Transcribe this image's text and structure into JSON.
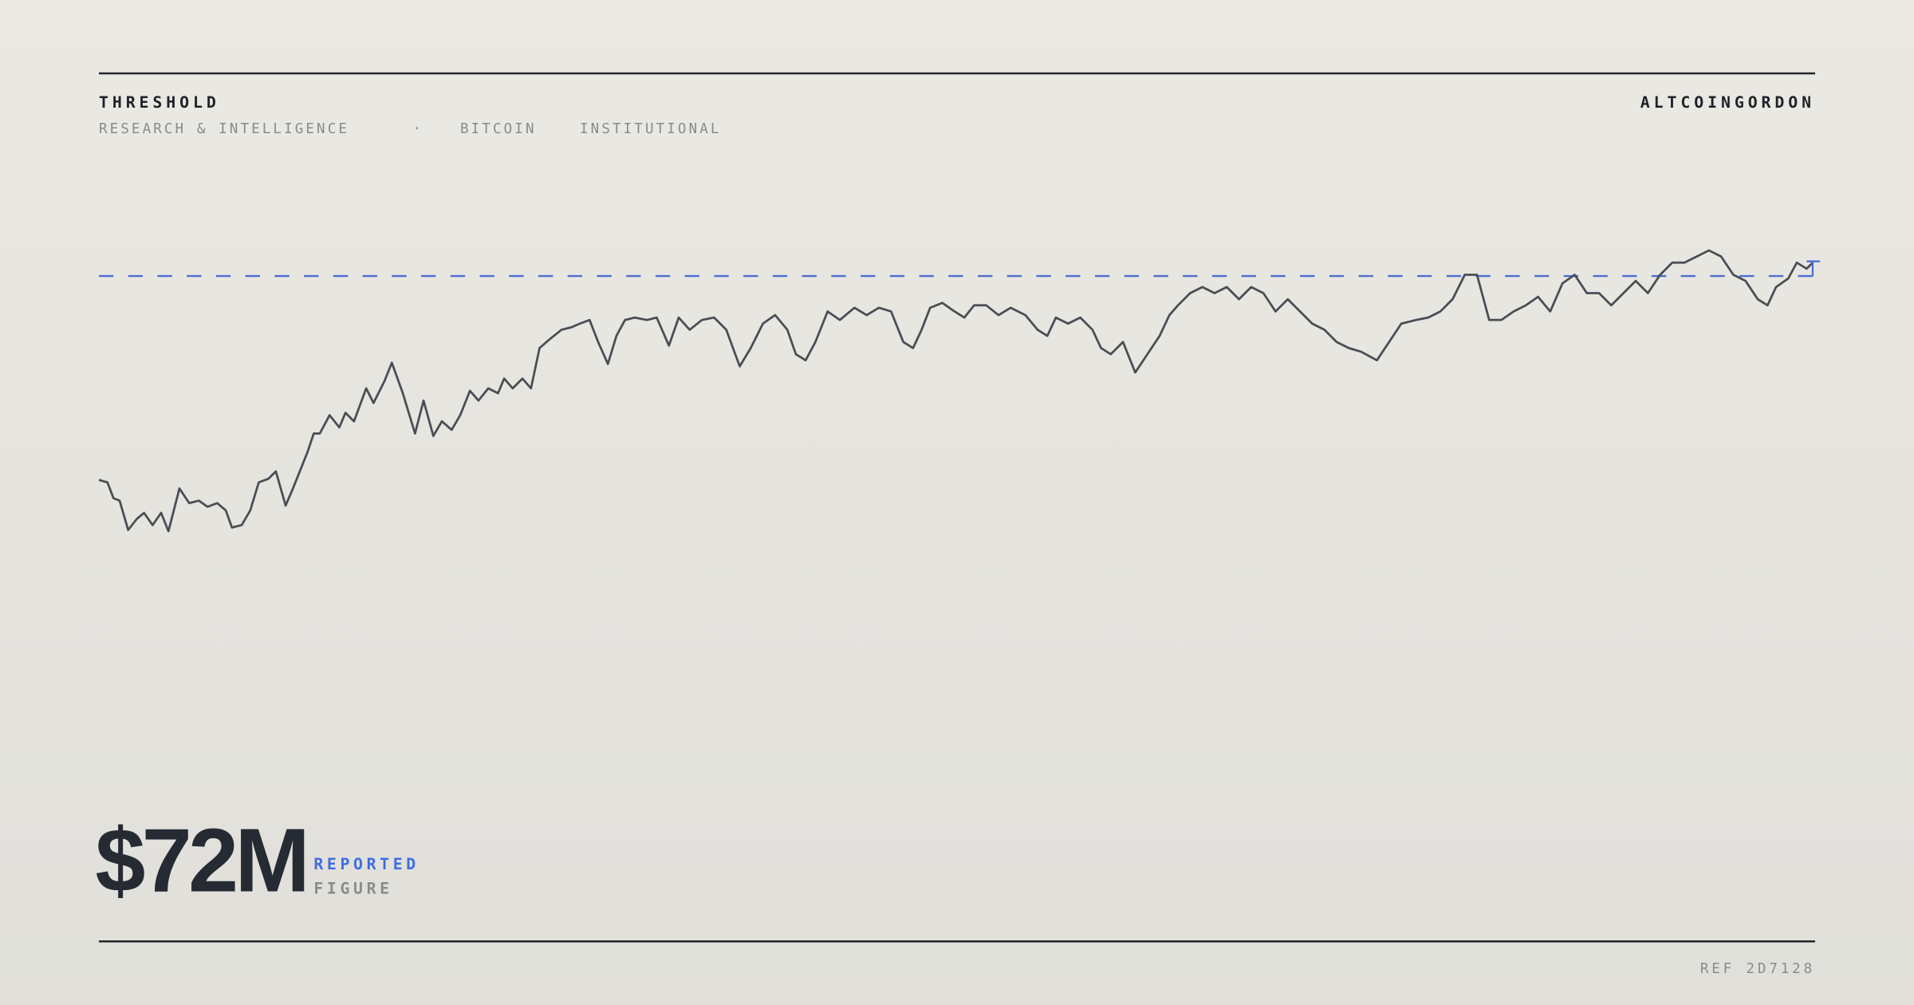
{
  "header": {
    "title": "THRESHOLD",
    "subtitle": [
      "RESEARCH & INTELLIGENCE",
      "·",
      "BITCOIN",
      "INSTITUTIONAL"
    ],
    "brand": "ALTCOINGORDON"
  },
  "figure": {
    "value": "$72M",
    "label_top": "REPORTED",
    "label_bottom": "FIGURE"
  },
  "footer": {
    "ref": "REF 2D7128"
  }
}
